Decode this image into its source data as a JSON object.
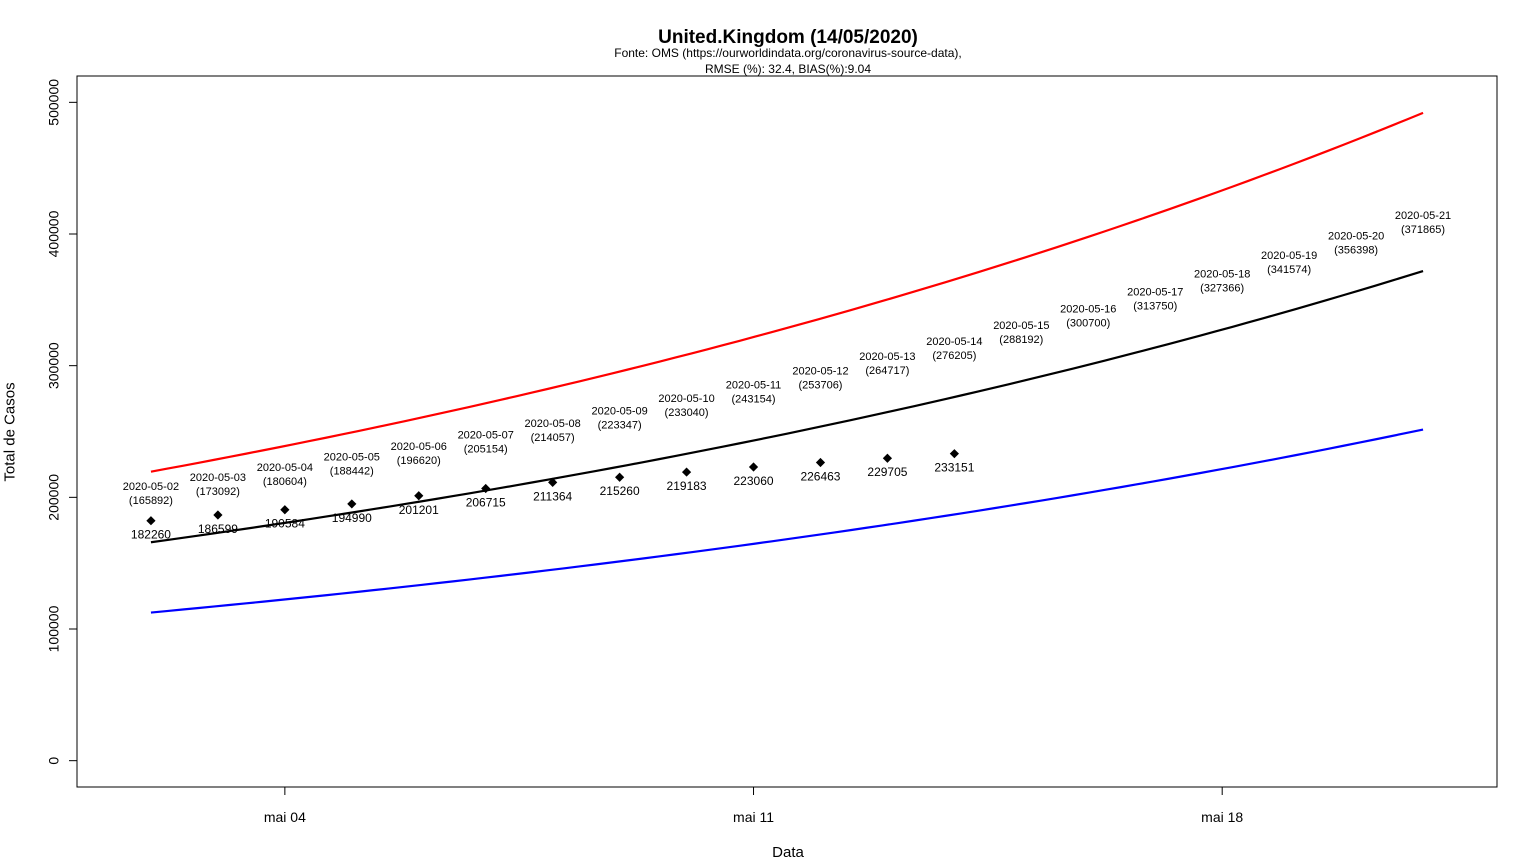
{
  "chart_data": {
    "type": "line",
    "title": "United.Kingdom (14/05/2020)",
    "subtitle_lines": [
      "Fonte: OMS (https://ourworldindata.org/coronavirus-source-data),",
      "RMSE (%): 32.4, BIAS(%):9.04"
    ],
    "xlabel": "Data",
    "ylabel": "Total de Casos",
    "x_range": [
      "2020-05-01",
      "2020-05-22"
    ],
    "ylim": [
      -20000,
      520000
    ],
    "y_ticks": [
      0,
      100000,
      200000,
      300000,
      400000,
      500000
    ],
    "x_ticks": [
      {
        "date": "2020-05-04",
        "label": "mai 04"
      },
      {
        "date": "2020-05-11",
        "label": "mai 11"
      },
      {
        "date": "2020-05-18",
        "label": "mai 18"
      }
    ],
    "grid": false,
    "observed": {
      "marker": "diamond",
      "color": "#000000",
      "points": [
        {
          "date": "2020-05-02",
          "value": 182260
        },
        {
          "date": "2020-05-03",
          "value": 186599
        },
        {
          "date": "2020-05-04",
          "value": 190584
        },
        {
          "date": "2020-05-05",
          "value": 194990
        },
        {
          "date": "2020-05-06",
          "value": 201201
        },
        {
          "date": "2020-05-07",
          "value": 206715
        },
        {
          "date": "2020-05-08",
          "value": 211364
        },
        {
          "date": "2020-05-09",
          "value": 215260
        },
        {
          "date": "2020-05-10",
          "value": 219183
        },
        {
          "date": "2020-05-11",
          "value": 223060
        },
        {
          "date": "2020-05-12",
          "value": 226463
        },
        {
          "date": "2020-05-13",
          "value": 229705
        },
        {
          "date": "2020-05-14",
          "value": 233151
        }
      ]
    },
    "predicted_labels": [
      {
        "date": "2020-05-02",
        "label": "2020-05-02",
        "value_label": "(165892)",
        "value": 165892
      },
      {
        "date": "2020-05-03",
        "label": "2020-05-03",
        "value_label": "(173092)",
        "value": 173092
      },
      {
        "date": "2020-05-04",
        "label": "2020-05-04",
        "value_label": "(180604)",
        "value": 180604
      },
      {
        "date": "2020-05-05",
        "label": "2020-05-05",
        "value_label": "(188442)",
        "value": 188442
      },
      {
        "date": "2020-05-06",
        "label": "2020-05-06",
        "value_label": "(196620)",
        "value": 196620
      },
      {
        "date": "2020-05-07",
        "label": "2020-05-07",
        "value_label": "(205154)",
        "value": 205154
      },
      {
        "date": "2020-05-08",
        "label": "2020-05-08",
        "value_label": "(214057)",
        "value": 214057
      },
      {
        "date": "2020-05-09",
        "label": "2020-05-09",
        "value_label": "(223347)",
        "value": 223347
      },
      {
        "date": "2020-05-10",
        "label": "2020-05-10",
        "value_label": "(233040)",
        "value": 233040
      },
      {
        "date": "2020-05-11",
        "label": "2020-05-11",
        "value_label": "(243154)",
        "value": 243154
      },
      {
        "date": "2020-05-12",
        "label": "2020-05-12",
        "value_label": "(253706)",
        "value": 253706
      },
      {
        "date": "2020-05-13",
        "label": "2020-05-13",
        "value_label": "(264717)",
        "value": 264717
      },
      {
        "date": "2020-05-14",
        "label": "2020-05-14",
        "value_label": "(276205)",
        "value": 276205
      },
      {
        "date": "2020-05-15",
        "label": "2020-05-15",
        "value_label": "(288192)",
        "value": 288192
      },
      {
        "date": "2020-05-16",
        "label": "2020-05-16",
        "value_label": "(300700)",
        "value": 300700
      },
      {
        "date": "2020-05-17",
        "label": "2020-05-17",
        "value_label": "(313750)",
        "value": 313750
      },
      {
        "date": "2020-05-18",
        "label": "2020-05-18",
        "value_label": "(327366)",
        "value": 327366
      },
      {
        "date": "2020-05-19",
        "label": "2020-05-19",
        "value_label": "(341574)",
        "value": 341574
      },
      {
        "date": "2020-05-20",
        "label": "2020-05-20",
        "value_label": "(356398)",
        "value": 356398
      },
      {
        "date": "2020-05-21",
        "label": "2020-05-21",
        "value_label": "(371865)",
        "value": 371865
      }
    ],
    "series": [
      {
        "color": "#ff0000",
        "x": [
          "2020-05-02",
          "2020-05-21"
        ],
        "values": [
          219500,
          492000
        ]
      },
      {
        "color": "#000000",
        "x": [
          "2020-05-02",
          "2020-05-21"
        ],
        "values": [
          165892,
          371865
        ]
      },
      {
        "color": "#0000ff",
        "x": [
          "2020-05-02",
          "2020-05-21"
        ],
        "values": [
          112500,
          251500
        ]
      }
    ]
  }
}
